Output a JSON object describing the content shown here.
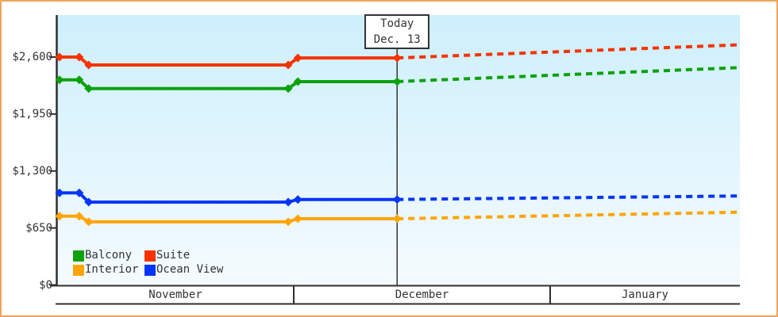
{
  "colors": {
    "frame_border": "#EFA45C",
    "axis": "#2F2F2F",
    "today_line": "#333333",
    "plot_bg_top": "#CDEFFC",
    "plot_bg_bottom": "#F5FBFE",
    "text": "#333333"
  },
  "chart_data": {
    "type": "line",
    "title": "",
    "ylabel": "",
    "xlabel": "",
    "ylim": [
      0,
      3080
    ],
    "grid": "off",
    "legend_position": "inside-bottom-left",
    "y_ticks": [
      {
        "value": 2600,
        "label": "$2,600"
      },
      {
        "value": 1950,
        "label": "$1,950"
      },
      {
        "value": 1300,
        "label": "$1,300"
      },
      {
        "value": 650,
        "label": "$650"
      },
      {
        "value": 0,
        "label": "$0"
      }
    ],
    "x_total_days": 84,
    "months": [
      {
        "label": "November",
        "start_day": 0
      },
      {
        "label": "December",
        "start_day": 30
      },
      {
        "label": "January",
        "start_day": 61
      }
    ],
    "today": {
      "day": 42.5,
      "line1": "Today",
      "line2": "Dec. 13"
    },
    "series": [
      {
        "name": "Balcony",
        "color": "#0DA10D",
        "solid": [
          [
            0.3,
            2340
          ],
          [
            2.8,
            2340
          ],
          [
            4.0,
            2240
          ],
          [
            29.3,
            2240
          ],
          [
            30.5,
            2320
          ],
          [
            42.5,
            2320
          ]
        ],
        "forecast": [
          [
            42.5,
            2320
          ],
          [
            84,
            2480
          ]
        ]
      },
      {
        "name": "Suite",
        "color": "#F63300",
        "solid": [
          [
            0.3,
            2600
          ],
          [
            2.8,
            2600
          ],
          [
            4.0,
            2510
          ],
          [
            29.3,
            2510
          ],
          [
            30.5,
            2590
          ],
          [
            42.5,
            2590
          ]
        ],
        "forecast": [
          [
            42.5,
            2590
          ],
          [
            84,
            2740
          ]
        ]
      },
      {
        "name": "Interior",
        "color": "#FFA408",
        "solid": [
          [
            0.3,
            785
          ],
          [
            2.8,
            785
          ],
          [
            4.0,
            720
          ],
          [
            29.3,
            720
          ],
          [
            30.5,
            755
          ],
          [
            42.5,
            755
          ]
        ],
        "forecast": [
          [
            42.5,
            755
          ],
          [
            84,
            830
          ]
        ]
      },
      {
        "name": "Ocean View",
        "color": "#0435F6",
        "solid": [
          [
            0.3,
            1050
          ],
          [
            2.8,
            1050
          ],
          [
            4.0,
            945
          ],
          [
            29.3,
            945
          ],
          [
            30.5,
            975
          ],
          [
            42.5,
            975
          ]
        ],
        "forecast": [
          [
            42.5,
            975
          ],
          [
            84,
            1015
          ]
        ]
      }
    ]
  }
}
